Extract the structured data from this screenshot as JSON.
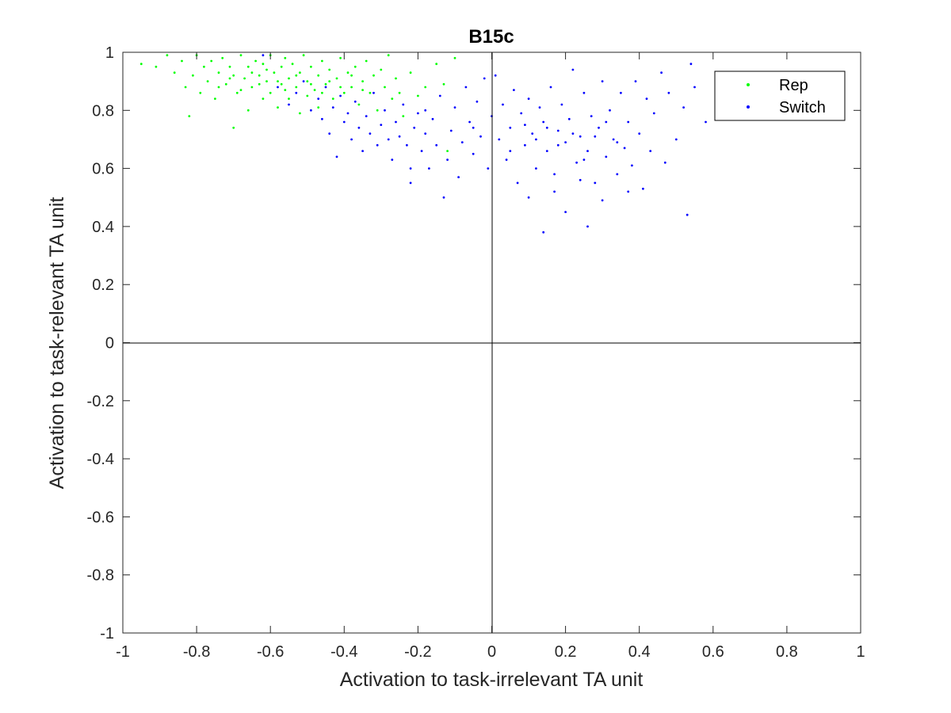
{
  "chart_data": {
    "type": "scatter",
    "title": "B15c",
    "xlabel": "Activation to task-irrelevant TA unit",
    "ylabel": "Activation to task-relevant TA unit",
    "xlim": [
      -1,
      1
    ],
    "ylim": [
      -1,
      1
    ],
    "x_ticks": [
      "-1",
      "-0.8",
      "-0.6",
      "-0.4",
      "-0.2",
      "0",
      "0.2",
      "0.4",
      "0.6",
      "0.8",
      "1"
    ],
    "y_ticks": [
      "-1",
      "-0.8",
      "-0.6",
      "-0.4",
      "-0.2",
      "0",
      "0.2",
      "0.4",
      "0.6",
      "0.8",
      "1"
    ],
    "grid": false,
    "reference_lines": [
      "x = 0",
      "y = 0"
    ],
    "legend_position": "top-right",
    "series": [
      {
        "name": "Rep",
        "color": "#00ff00",
        "points": [
          [
            -0.95,
            0.96
          ],
          [
            -0.91,
            0.95
          ],
          [
            -0.88,
            0.99
          ],
          [
            -0.86,
            0.93
          ],
          [
            -0.84,
            0.97
          ],
          [
            -0.83,
            0.88
          ],
          [
            -0.82,
            0.78
          ],
          [
            -0.81,
            0.92
          ],
          [
            -0.8,
            0.99
          ],
          [
            -0.79,
            0.86
          ],
          [
            -0.78,
            0.95
          ],
          [
            -0.77,
            0.9
          ],
          [
            -0.76,
            0.97
          ],
          [
            -0.75,
            0.84
          ],
          [
            -0.74,
            0.93
          ],
          [
            -0.73,
            0.98
          ],
          [
            -0.72,
            0.89
          ],
          [
            -0.71,
            0.95
          ],
          [
            -0.7,
            0.74
          ],
          [
            -0.7,
            0.92
          ],
          [
            -0.69,
            0.86
          ],
          [
            -0.68,
            0.99
          ],
          [
            -0.67,
            0.91
          ],
          [
            -0.66,
            0.8
          ],
          [
            -0.66,
            0.95
          ],
          [
            -0.65,
            0.88
          ],
          [
            -0.64,
            0.97
          ],
          [
            -0.63,
            0.92
          ],
          [
            -0.62,
            0.84
          ],
          [
            -0.62,
            0.96
          ],
          [
            -0.61,
            0.9
          ],
          [
            -0.6,
            0.99
          ],
          [
            -0.6,
            0.86
          ],
          [
            -0.59,
            0.93
          ],
          [
            -0.58,
            0.81
          ],
          [
            -0.57,
            0.95
          ],
          [
            -0.57,
            0.89
          ],
          [
            -0.56,
            0.98
          ],
          [
            -0.55,
            0.91
          ],
          [
            -0.55,
            0.84
          ],
          [
            -0.54,
            0.96
          ],
          [
            -0.53,
            0.88
          ],
          [
            -0.52,
            0.93
          ],
          [
            -0.52,
            0.79
          ],
          [
            -0.51,
            0.99
          ],
          [
            -0.5,
            0.9
          ],
          [
            -0.5,
            0.85
          ],
          [
            -0.49,
            0.95
          ],
          [
            -0.48,
            0.87
          ],
          [
            -0.47,
            0.92
          ],
          [
            -0.47,
            0.81
          ],
          [
            -0.46,
            0.97
          ],
          [
            -0.45,
            0.89
          ],
          [
            -0.44,
            0.94
          ],
          [
            -0.43,
            0.84
          ],
          [
            -0.42,
            0.91
          ],
          [
            -0.41,
            0.98
          ],
          [
            -0.4,
            0.86
          ],
          [
            -0.39,
            0.93
          ],
          [
            -0.38,
            0.88
          ],
          [
            -0.37,
            0.95
          ],
          [
            -0.36,
            0.82
          ],
          [
            -0.35,
            0.9
          ],
          [
            -0.34,
            0.97
          ],
          [
            -0.33,
            0.86
          ],
          [
            -0.32,
            0.92
          ],
          [
            -0.31,
            0.8
          ],
          [
            -0.3,
            0.94
          ],
          [
            -0.29,
            0.88
          ],
          [
            -0.28,
            0.99
          ],
          [
            -0.27,
            0.84
          ],
          [
            -0.26,
            0.91
          ],
          [
            -0.25,
            0.86
          ],
          [
            -0.24,
            0.78
          ],
          [
            -0.22,
            0.93
          ],
          [
            -0.2,
            0.85
          ],
          [
            -0.18,
            0.88
          ],
          [
            -0.15,
            0.96
          ],
          [
            -0.13,
            0.89
          ],
          [
            -0.12,
            0.66
          ],
          [
            -0.1,
            0.98
          ],
          [
            -0.74,
            0.88
          ],
          [
            -0.71,
            0.91
          ],
          [
            -0.68,
            0.87
          ],
          [
            -0.65,
            0.93
          ],
          [
            -0.63,
            0.89
          ],
          [
            -0.61,
            0.94
          ],
          [
            -0.58,
            0.9
          ],
          [
            -0.56,
            0.87
          ],
          [
            -0.53,
            0.92
          ],
          [
            -0.49,
            0.89
          ],
          [
            -0.46,
            0.86
          ],
          [
            -0.44,
            0.9
          ],
          [
            -0.41,
            0.88
          ],
          [
            -0.38,
            0.92
          ],
          [
            -0.35,
            0.87
          ]
        ]
      },
      {
        "name": "Switch",
        "color": "#0000ff",
        "points": [
          [
            -0.62,
            0.99
          ],
          [
            -0.58,
            0.88
          ],
          [
            -0.55,
            0.82
          ],
          [
            -0.53,
            0.86
          ],
          [
            -0.51,
            0.9
          ],
          [
            -0.49,
            0.8
          ],
          [
            -0.47,
            0.84
          ],
          [
            -0.46,
            0.77
          ],
          [
            -0.45,
            0.88
          ],
          [
            -0.44,
            0.72
          ],
          [
            -0.43,
            0.81
          ],
          [
            -0.42,
            0.64
          ],
          [
            -0.41,
            0.85
          ],
          [
            -0.4,
            0.76
          ],
          [
            -0.39,
            0.79
          ],
          [
            -0.38,
            0.7
          ],
          [
            -0.37,
            0.83
          ],
          [
            -0.36,
            0.74
          ],
          [
            -0.35,
            0.66
          ],
          [
            -0.34,
            0.78
          ],
          [
            -0.33,
            0.72
          ],
          [
            -0.32,
            0.86
          ],
          [
            -0.31,
            0.68
          ],
          [
            -0.3,
            0.75
          ],
          [
            -0.29,
            0.8
          ],
          [
            -0.28,
            0.7
          ],
          [
            -0.27,
            0.63
          ],
          [
            -0.26,
            0.76
          ],
          [
            -0.25,
            0.71
          ],
          [
            -0.24,
            0.82
          ],
          [
            -0.23,
            0.68
          ],
          [
            -0.22,
            0.55
          ],
          [
            -0.21,
            0.74
          ],
          [
            -0.2,
            0.79
          ],
          [
            -0.19,
            0.66
          ],
          [
            -0.18,
            0.72
          ],
          [
            -0.17,
            0.6
          ],
          [
            -0.16,
            0.77
          ],
          [
            -0.15,
            0.68
          ],
          [
            -0.14,
            0.85
          ],
          [
            -0.13,
            0.5
          ],
          [
            -0.12,
            0.63
          ],
          [
            -0.11,
            0.73
          ],
          [
            -0.1,
            0.81
          ],
          [
            -0.09,
            0.57
          ],
          [
            -0.08,
            0.69
          ],
          [
            -0.07,
            0.88
          ],
          [
            -0.06,
            0.76
          ],
          [
            -0.05,
            0.65
          ],
          [
            -0.04,
            0.83
          ],
          [
            -0.03,
            0.71
          ],
          [
            -0.02,
            0.91
          ],
          [
            -0.01,
            0.6
          ],
          [
            0.0,
            0.78
          ],
          [
            0.01,
            0.92
          ],
          [
            0.02,
            0.7
          ],
          [
            0.03,
            0.82
          ],
          [
            0.04,
            0.63
          ],
          [
            0.05,
            0.74
          ],
          [
            0.06,
            0.87
          ],
          [
            0.07,
            0.55
          ],
          [
            0.08,
            0.79
          ],
          [
            0.09,
            0.68
          ],
          [
            0.1,
            0.84
          ],
          [
            0.11,
            0.72
          ],
          [
            0.12,
            0.6
          ],
          [
            0.13,
            0.81
          ],
          [
            0.14,
            0.38
          ],
          [
            0.14,
            0.76
          ],
          [
            0.15,
            0.66
          ],
          [
            0.16,
            0.88
          ],
          [
            0.17,
            0.58
          ],
          [
            0.18,
            0.73
          ],
          [
            0.19,
            0.82
          ],
          [
            0.2,
            0.45
          ],
          [
            0.2,
            0.69
          ],
          [
            0.21,
            0.77
          ],
          [
            0.22,
            0.94
          ],
          [
            0.23,
            0.62
          ],
          [
            0.24,
            0.71
          ],
          [
            0.25,
            0.86
          ],
          [
            0.26,
            0.4
          ],
          [
            0.26,
            0.66
          ],
          [
            0.27,
            0.78
          ],
          [
            0.28,
            0.55
          ],
          [
            0.29,
            0.74
          ],
          [
            0.3,
            0.9
          ],
          [
            0.31,
            0.64
          ],
          [
            0.32,
            0.8
          ],
          [
            0.33,
            0.7
          ],
          [
            0.34,
            0.58
          ],
          [
            0.35,
            0.86
          ],
          [
            0.36,
            0.67
          ],
          [
            0.37,
            0.76
          ],
          [
            0.38,
            0.61
          ],
          [
            0.39,
            0.9
          ],
          [
            0.4,
            0.72
          ],
          [
            0.41,
            0.53
          ],
          [
            0.42,
            0.84
          ],
          [
            0.43,
            0.66
          ],
          [
            0.44,
            0.79
          ],
          [
            0.46,
            0.93
          ],
          [
            0.47,
            0.62
          ],
          [
            0.48,
            0.86
          ],
          [
            0.5,
            0.7
          ],
          [
            0.52,
            0.81
          ],
          [
            0.53,
            0.44
          ],
          [
            0.54,
            0.96
          ],
          [
            0.55,
            0.88
          ],
          [
            0.58,
            0.76
          ],
          [
            -0.22,
            0.6
          ],
          [
            -0.18,
            0.8
          ],
          [
            -0.05,
            0.74
          ],
          [
            0.05,
            0.66
          ],
          [
            0.09,
            0.75
          ],
          [
            0.12,
            0.7
          ],
          [
            0.15,
            0.74
          ],
          [
            0.18,
            0.68
          ],
          [
            0.22,
            0.72
          ],
          [
            0.25,
            0.63
          ],
          [
            0.28,
            0.71
          ],
          [
            0.31,
            0.76
          ],
          [
            0.34,
            0.69
          ],
          [
            0.1,
            0.5
          ],
          [
            0.17,
            0.52
          ],
          [
            0.24,
            0.56
          ],
          [
            0.3,
            0.49
          ],
          [
            0.37,
            0.52
          ]
        ]
      }
    ]
  }
}
